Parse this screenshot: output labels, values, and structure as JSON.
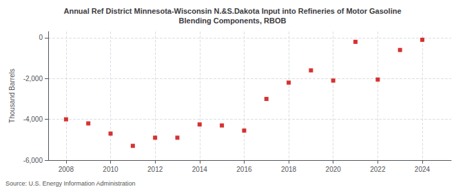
{
  "chart_data": {
    "type": "scatter",
    "title": "Annual Ref District Minnesota-Wisconsin N.&S.Dakota Input into Refineries of Motor Gasoline\nBlending Components, RBOB",
    "ylabel": "Thousand Barrels",
    "source": "Source: U.S. Energy Information Administration",
    "x": [
      2008,
      2009,
      2010,
      2011,
      2012,
      2013,
      2014,
      2015,
      2016,
      2017,
      2018,
      2019,
      2020,
      2021,
      2022,
      2023,
      2024
    ],
    "values": [
      -4000,
      -4200,
      -4700,
      -5300,
      -4900,
      -4900,
      -4250,
      -4300,
      -4550,
      -3000,
      -2200,
      -1600,
      -2100,
      -200,
      -2050,
      -600,
      -100
    ],
    "color": "#cc0000",
    "marker": "square",
    "xlim": [
      2007.2,
      2025.3
    ],
    "xticks": [
      2008,
      2010,
      2012,
      2014,
      2016,
      2018,
      2020,
      2022,
      2024
    ],
    "ylim": [
      -6000,
      300
    ],
    "yticks": [
      0,
      {
        "value": -2000,
        "label": "-2,000"
      },
      {
        "value": -4000,
        "label": "-4,000"
      },
      {
        "value": -6000,
        "label": "-6,000"
      }
    ],
    "grid": true
  }
}
